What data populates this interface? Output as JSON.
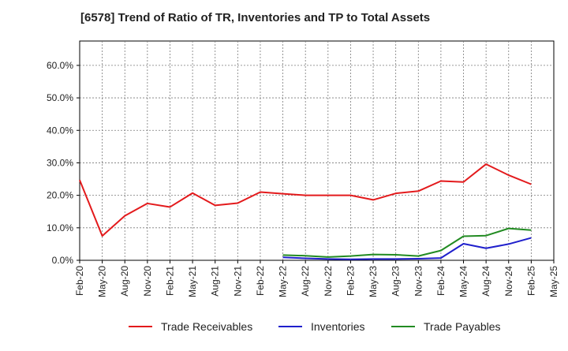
{
  "chart_data": {
    "type": "line",
    "title": "[6578]  Trend of Ratio of TR, Inventories and TP to Total Assets",
    "xlabel": "",
    "ylabel": "",
    "ylim": [
      0,
      0.675
    ],
    "y_ticks": [
      0.0,
      0.1,
      0.2,
      0.3,
      0.4,
      0.5,
      0.6
    ],
    "y_tick_labels": [
      "0.0%",
      "10.0%",
      "20.0%",
      "30.0%",
      "40.0%",
      "50.0%",
      "60.0%"
    ],
    "x_tick_labels": [
      "Feb-20",
      "May-20",
      "Aug-20",
      "Nov-20",
      "Feb-21",
      "May-21",
      "Aug-21",
      "Nov-21",
      "Feb-22",
      "May-22",
      "Aug-22",
      "Nov-22",
      "Feb-23",
      "May-23",
      "Aug-23",
      "Nov-23",
      "Feb-24",
      "May-24",
      "Aug-24",
      "Nov-24",
      "Feb-25",
      "May-25"
    ],
    "grid": true,
    "legend_position": "bottom",
    "series": [
      {
        "name": "Trade Receivables",
        "color": "#e31a1c",
        "values": [
          0.247,
          0.075,
          0.137,
          0.175,
          0.164,
          0.207,
          0.169,
          0.176,
          0.21,
          0.205,
          0.2,
          0.2,
          0.2,
          0.186,
          0.206,
          0.213,
          0.244,
          0.241,
          0.296,
          0.262,
          0.234,
          null
        ]
      },
      {
        "name": "Inventories",
        "color": "#1f1fcc",
        "values": [
          null,
          null,
          null,
          null,
          null,
          null,
          null,
          null,
          null,
          0.009,
          0.006,
          0.004,
          0.003,
          0.004,
          0.004,
          0.005,
          0.007,
          0.051,
          0.037,
          0.05,
          0.069,
          null
        ]
      },
      {
        "name": "Trade Payables",
        "color": "#228b22",
        "values": [
          null,
          null,
          null,
          null,
          null,
          null,
          null,
          null,
          null,
          0.016,
          0.014,
          0.01,
          0.013,
          0.018,
          0.017,
          0.013,
          0.03,
          0.074,
          0.076,
          0.098,
          0.093,
          null
        ]
      }
    ]
  }
}
